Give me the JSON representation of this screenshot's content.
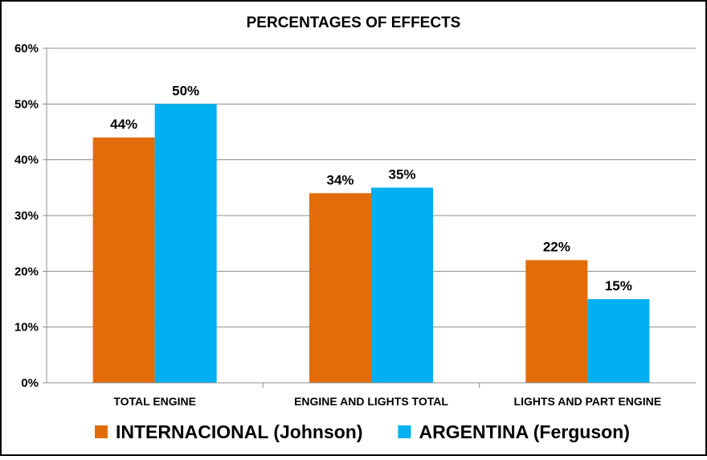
{
  "chart_data": {
    "type": "bar",
    "title": "PERCENTAGES OF EFFECTS",
    "categories": [
      "TOTAL ENGINE",
      "ENGINE AND LIGHTS TOTAL",
      "LIGHTS AND PART ENGINE"
    ],
    "series": [
      {
        "name": "INTERNACIONAL (Johnson)",
        "color": "#E36C0A",
        "values": [
          44,
          34,
          22
        ],
        "labels": [
          "44%",
          "34%",
          "22%"
        ]
      },
      {
        "name": "ARGENTINA (Ferguson)",
        "color": "#00B0F0",
        "values": [
          50,
          35,
          15
        ],
        "labels": [
          "50%",
          "35%",
          "15%"
        ]
      }
    ],
    "ylim": [
      0,
      60
    ],
    "yticks": [
      0,
      10,
      20,
      30,
      40,
      50,
      60
    ],
    "ytick_labels": [
      "0%",
      "10%",
      "20%",
      "30%",
      "40%",
      "50%",
      "60%"
    ],
    "grid": true,
    "legend": "bottom",
    "xlabel": "",
    "ylabel": ""
  }
}
